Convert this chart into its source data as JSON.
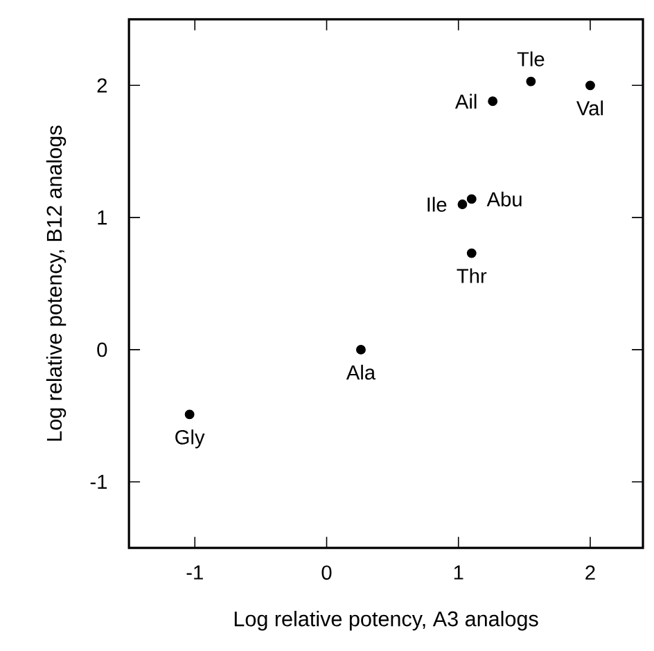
{
  "chart_data": {
    "type": "scatter",
    "xlabel": "Log relative potency,  A3 analogs",
    "ylabel": "Log relative potency,  B12 analogs",
    "x": [
      -1.04,
      0.26,
      1.1,
      1.03,
      1.1,
      1.26,
      1.55,
      2.0
    ],
    "values": [
      -0.49,
      0.0,
      0.73,
      1.1,
      1.14,
      1.88,
      2.03,
      2.0
    ],
    "color": "#000000",
    "xlim": [
      -1.5,
      2.4
    ],
    "ylim": [
      -1.5,
      2.5
    ],
    "xticks": [
      -1,
      0,
      1,
      2
    ],
    "yticks": [
      -1,
      0,
      1,
      2
    ],
    "annotations": [
      {
        "text": "Gly",
        "x": -1.04,
        "y": -0.49
      },
      {
        "text": "Ala",
        "x": 0.26,
        "y": 0.0
      },
      {
        "text": "Thr",
        "x": 1.1,
        "y": 0.73
      },
      {
        "text": "Ile",
        "x": 1.03,
        "y": 1.1
      },
      {
        "text": "Abu",
        "x": 1.1,
        "y": 1.14
      },
      {
        "text": "Ail",
        "x": 1.26,
        "y": 1.88
      },
      {
        "text": "Tle",
        "x": 1.55,
        "y": 2.03
      },
      {
        "text": "Val",
        "x": 2.0,
        "y": 2.0
      }
    ]
  }
}
